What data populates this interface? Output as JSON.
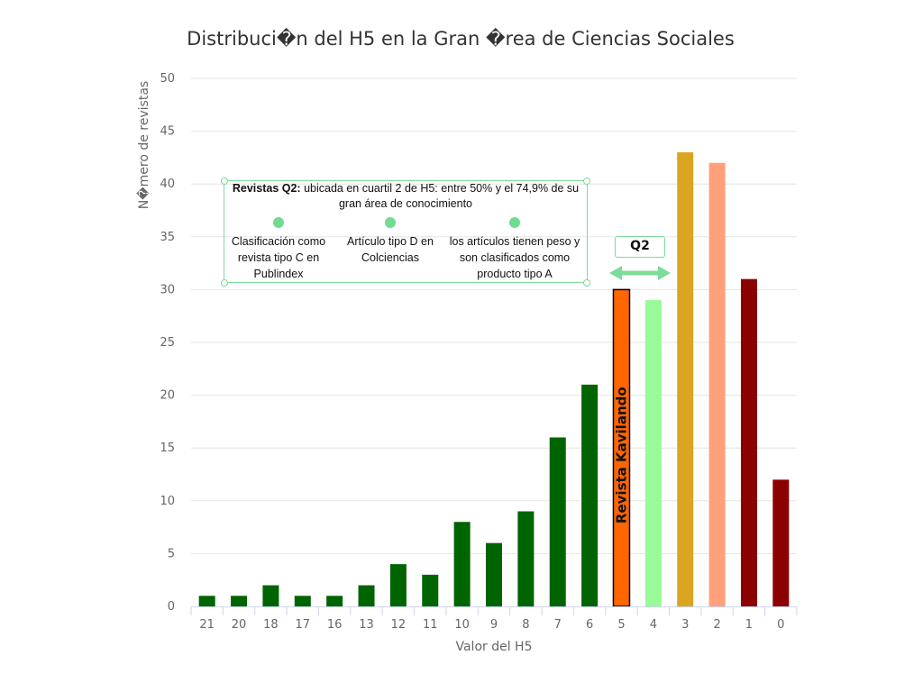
{
  "chart_data": {
    "type": "bar",
    "title": "Distribuci�n del H5 en la Gran �rea de Ciencias Sociales",
    "xlabel": "Valor del H5",
    "ylabel": "N�mero de revistas",
    "ylim": [
      0,
      50
    ],
    "yticks": [
      "0",
      "5",
      "10",
      "15",
      "20",
      "25",
      "30",
      "35",
      "40",
      "45",
      "50"
    ],
    "grid": true,
    "categories": [
      "21",
      "20",
      "18",
      "17",
      "16",
      "13",
      "12",
      "11",
      "10",
      "9",
      "8",
      "7",
      "6",
      "5",
      "4",
      "3",
      "2",
      "1",
      "0"
    ],
    "values": [
      1,
      1,
      2,
      1,
      1,
      2,
      4,
      3,
      8,
      6,
      9,
      16,
      21,
      30,
      29,
      43,
      42,
      31,
      12
    ],
    "colors": [
      "#006400",
      "#006400",
      "#006400",
      "#006400",
      "#006400",
      "#006400",
      "#006400",
      "#006400",
      "#006400",
      "#006400",
      "#006400",
      "#006400",
      "#006400",
      "#ff6600",
      "#98fb98",
      "#daa520",
      "#ffa07a",
      "#8b0000",
      "#8b0000"
    ],
    "highlight_label": "Revista Kavilando"
  },
  "annotation": {
    "heading_bold": "Revistas Q2:",
    "heading_rest": " ubicada en cuartil 2 de H5: entre 50% y el 74,9% de su gran área de conocimiento",
    "items": [
      "Clasificación como revista tipo C en Publindex",
      "Artículo tipo D en Colciencias",
      "los artículos tienen peso y son clasificados como producto tipo A"
    ],
    "q2_label": "Q2",
    "accent": "#7ddc9a"
  }
}
